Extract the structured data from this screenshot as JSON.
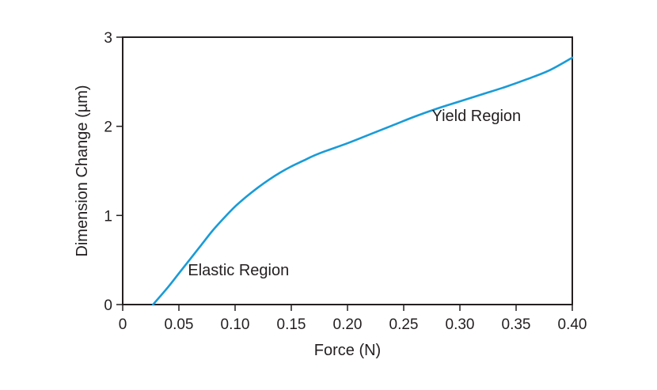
{
  "chart_data": {
    "type": "line",
    "xlabel": "Force (N)",
    "ylabel": "Dimension Change (µm)",
    "xlim": [
      0,
      0.4
    ],
    "ylim": [
      0,
      3
    ],
    "x_ticks": [
      0,
      0.05,
      0.1,
      0.15,
      0.2,
      0.25,
      0.3,
      0.35,
      0.4
    ],
    "x_tick_labels": [
      "0",
      "0.05",
      "0.10",
      "0.15",
      "0.20",
      "0.25",
      "0.30",
      "0.35",
      "0.40"
    ],
    "y_ticks": [
      0,
      1,
      2,
      3
    ],
    "y_tick_labels": [
      "0",
      "1",
      "2",
      "3"
    ],
    "grid": false,
    "legend": "none",
    "line_color": "#1a9bd7",
    "series": [
      {
        "x": [
          0.027,
          0.04,
          0.05,
          0.06,
          0.07,
          0.08,
          0.09,
          0.1,
          0.11,
          0.12,
          0.13,
          0.14,
          0.15,
          0.16,
          0.17,
          0.18,
          0.2,
          0.22,
          0.24,
          0.26,
          0.28,
          0.3,
          0.32,
          0.34,
          0.36,
          0.38,
          0.4
        ],
        "y": [
          0.0,
          0.19,
          0.35,
          0.51,
          0.67,
          0.83,
          0.97,
          1.1,
          1.21,
          1.31,
          1.4,
          1.48,
          1.55,
          1.61,
          1.67,
          1.72,
          1.81,
          1.91,
          2.01,
          2.11,
          2.2,
          2.28,
          2.36,
          2.44,
          2.53,
          2.63,
          2.77
        ]
      }
    ],
    "annotations": [
      {
        "text": "Elastic Region",
        "x": 0.058,
        "y": 0.33
      },
      {
        "text": "Yield Region",
        "x": 0.275,
        "y": 2.06
      }
    ]
  }
}
